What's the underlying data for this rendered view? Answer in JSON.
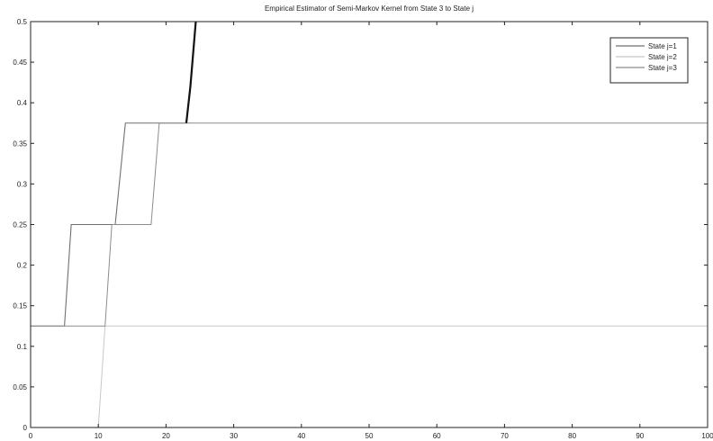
{
  "chart_data": {
    "type": "line",
    "title": "Empirical Estimator of Semi-Markov Kernel from State 3 to State j",
    "xlabel": "",
    "ylabel": "",
    "xlim": [
      0,
      100
    ],
    "ylim": [
      0,
      0.5
    ],
    "x_ticks": [
      0,
      10,
      20,
      30,
      40,
      50,
      60,
      70,
      80,
      90,
      100
    ],
    "y_ticks": [
      0,
      0.05,
      0.1,
      0.15,
      0.2,
      0.25,
      0.3,
      0.35,
      0.4,
      0.45,
      0.5
    ],
    "x_tick_labels": [
      "0",
      "10",
      "20",
      "30",
      "40",
      "50",
      "60",
      "70",
      "80",
      "90",
      "100"
    ],
    "y_tick_labels": [
      "0",
      "0.05",
      "0.1",
      "0.15",
      "0.2",
      "0.25",
      "0.3",
      "0.35",
      "0.4",
      "0.45",
      "0.5"
    ],
    "grid": false,
    "legend_position": "top-right",
    "series": [
      {
        "name": "State j=1",
        "color": "#707070",
        "width": 1.1,
        "points": [
          [
            0,
            0.125
          ],
          [
            5,
            0.125
          ],
          [
            6,
            0.25
          ],
          [
            12.5,
            0.25
          ],
          [
            14,
            0.375
          ],
          [
            23,
            0.375
          ],
          [
            23.2,
            0.39
          ],
          [
            23.4,
            0.405
          ],
          [
            23.6,
            0.42
          ],
          [
            23.8,
            0.44
          ],
          [
            24,
            0.46
          ],
          [
            24.2,
            0.48
          ],
          [
            24.4,
            0.5
          ]
        ]
      },
      {
        "name": "State j=2",
        "color": "#c8c8c8",
        "width": 1.0,
        "points": [
          [
            10,
            0
          ],
          [
            11,
            0.125
          ],
          [
            100,
            0.125
          ]
        ]
      },
      {
        "name": "State j=3",
        "color": "#8c8c8c",
        "width": 1.0,
        "points": [
          [
            0,
            0.125
          ],
          [
            11,
            0.125
          ],
          [
            12,
            0.25
          ],
          [
            17.8,
            0.25
          ],
          [
            19,
            0.375
          ],
          [
            100,
            0.375
          ]
        ]
      },
      {
        "name": "",
        "color": "#111111",
        "width": 2.2,
        "points": [
          [
            23,
            0.375
          ],
          [
            23.2,
            0.39
          ],
          [
            23.4,
            0.405
          ],
          [
            23.6,
            0.42
          ],
          [
            23.8,
            0.44
          ],
          [
            24,
            0.46
          ],
          [
            24.2,
            0.48
          ],
          [
            24.4,
            0.5
          ]
        ]
      }
    ],
    "legend": [
      "State j=1",
      "State j=2",
      "State j=3"
    ]
  }
}
